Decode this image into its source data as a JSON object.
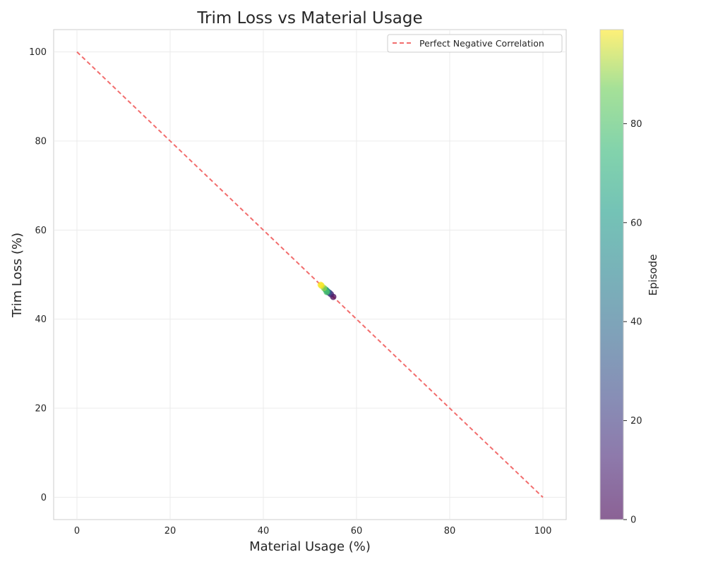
{
  "chart_data": {
    "type": "scatter",
    "title": "Trim Loss vs Material Usage",
    "xlabel": "Material Usage (%)",
    "ylabel": "Trim Loss (%)",
    "xlim": [
      -5,
      105
    ],
    "ylim": [
      -5,
      105
    ],
    "x_ticks": [
      0,
      20,
      40,
      60,
      80,
      100
    ],
    "y_ticks": [
      0,
      20,
      40,
      60,
      80,
      100
    ],
    "grid": true,
    "legend": {
      "placement": "top-right",
      "entries": [
        "Perfect Negative Correlation"
      ]
    },
    "reference_line": {
      "name": "Perfect Negative Correlation",
      "x": [
        0,
        100
      ],
      "y": [
        100,
        0
      ],
      "style": "dashed",
      "color": "#f26d6d"
    },
    "colorbar": {
      "label": "Episode",
      "range": [
        0,
        99
      ],
      "ticks": [
        0,
        20,
        40,
        60,
        80
      ],
      "colormap": "viridis"
    },
    "points": [
      {
        "x": 55.0,
        "y": 45.0,
        "episode": 0
      },
      {
        "x": 54.5,
        "y": 45.6,
        "episode": 10
      },
      {
        "x": 54.2,
        "y": 45.9,
        "episode": 20
      },
      {
        "x": 54.0,
        "y": 46.0,
        "episode": 30
      },
      {
        "x": 53.8,
        "y": 46.2,
        "episode": 40
      },
      {
        "x": 53.7,
        "y": 46.3,
        "episode": 50
      },
      {
        "x": 53.5,
        "y": 46.5,
        "episode": 60
      },
      {
        "x": 53.3,
        "y": 46.7,
        "episode": 70
      },
      {
        "x": 53.6,
        "y": 46.1,
        "episode": 80
      },
      {
        "x": 53.0,
        "y": 47.0,
        "episode": 90
      },
      {
        "x": 52.5,
        "y": 47.5,
        "episode": 96
      },
      {
        "x": 52.3,
        "y": 47.7,
        "episode": 99
      }
    ]
  }
}
